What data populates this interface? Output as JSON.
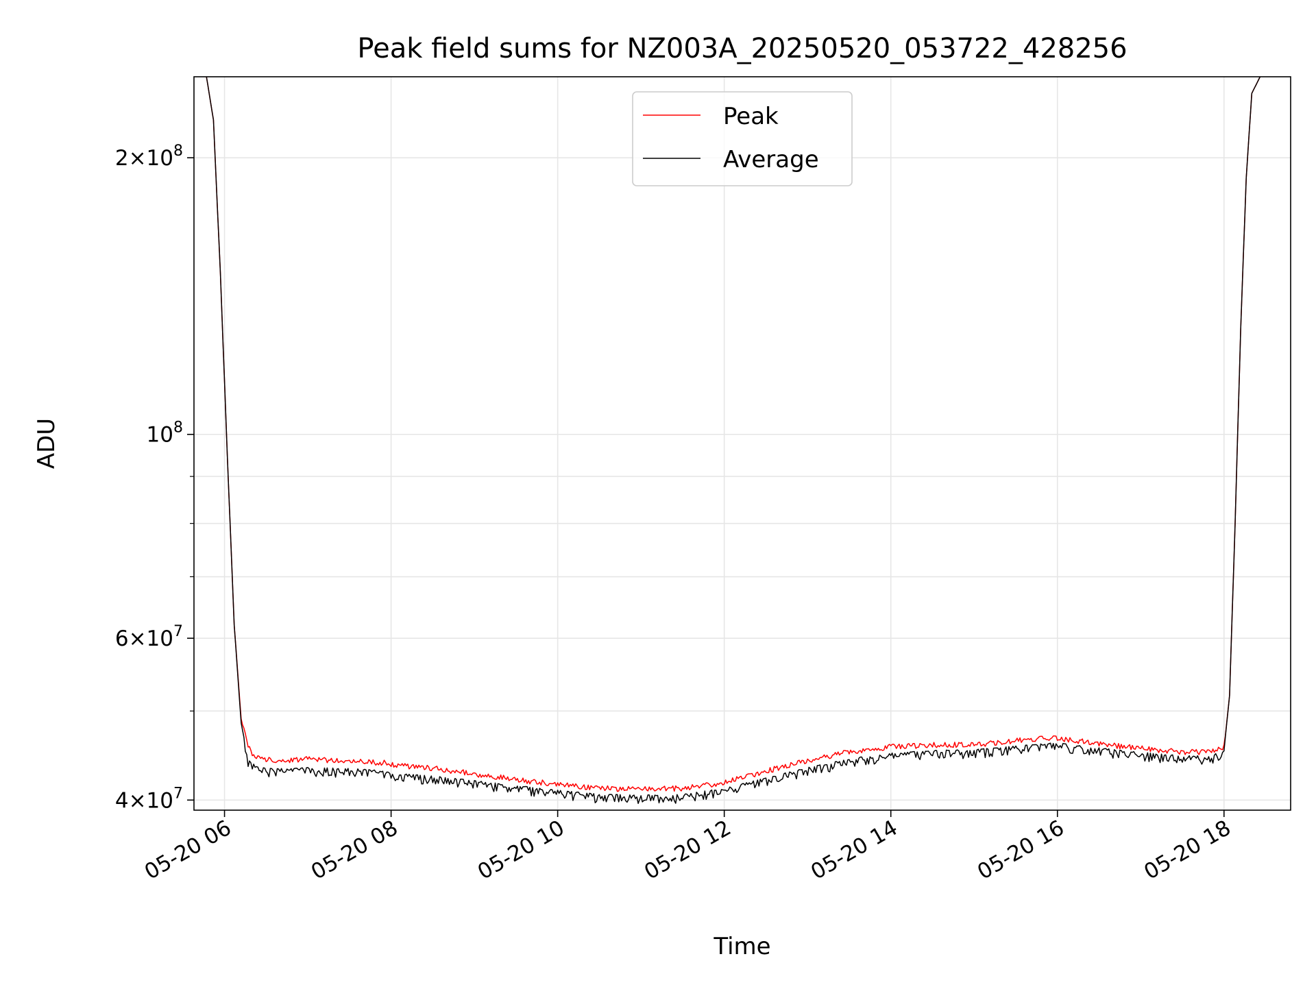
{
  "chart_data": {
    "type": "line",
    "title": "Peak field sums for NZ003A_20250520_053722_428256",
    "xlabel": "Time",
    "ylabel": "ADU",
    "yscale": "log",
    "ylim": [
      39000000,
      245000000
    ],
    "xlim": [
      "2025-05-20T05:38",
      "2025-05-20T18:48"
    ],
    "grid": true,
    "legend_position": "top-center",
    "x_tick_labels": [
      "05-20 06",
      "05-20 08",
      "05-20 10",
      "05-20 12",
      "05-20 14",
      "05-20 16",
      "05-20 18"
    ],
    "x_tick_values": [
      "2025-05-20T06:00",
      "2025-05-20T08:00",
      "2025-05-20T10:00",
      "2025-05-20T12:00",
      "2025-05-20T14:00",
      "2025-05-20T16:00",
      "2025-05-20T18:00"
    ],
    "y_ticks": [
      {
        "value": 200000000,
        "mantissa": "2",
        "exponent": "8"
      },
      {
        "value": 100000000,
        "mantissa": "",
        "exponent": "8"
      },
      {
        "value": 60000000,
        "mantissa": "6",
        "exponent": "7"
      },
      {
        "value": 40000000,
        "mantissa": "4",
        "exponent": "7"
      }
    ],
    "series": [
      {
        "name": "Peak",
        "color": "#ff0000",
        "x": [
          "2025-05-20T05:47",
          "2025-05-20T05:52",
          "2025-05-20T05:57",
          "2025-05-20T06:02",
          "2025-05-20T06:07",
          "2025-05-20T06:12",
          "2025-05-20T06:17",
          "2025-05-20T06:22",
          "2025-05-20T06:30",
          "2025-05-20T06:45",
          "2025-05-20T07:00",
          "2025-05-20T07:30",
          "2025-05-20T07:55",
          "2025-05-20T08:00",
          "2025-05-20T08:30",
          "2025-05-20T09:00",
          "2025-05-20T09:30",
          "2025-05-20T10:00",
          "2025-05-20T10:30",
          "2025-05-20T11:00",
          "2025-05-20T11:30",
          "2025-05-20T12:00",
          "2025-05-20T12:30",
          "2025-05-20T13:00",
          "2025-05-20T13:30",
          "2025-05-20T14:00",
          "2025-05-20T14:30",
          "2025-05-20T15:00",
          "2025-05-20T15:30",
          "2025-05-20T16:00",
          "2025-05-20T16:30",
          "2025-05-20T17:00",
          "2025-05-20T17:30",
          "2025-05-20T17:50",
          "2025-05-20T18:00",
          "2025-05-20T18:04",
          "2025-05-20T18:08",
          "2025-05-20T18:12",
          "2025-05-20T18:16",
          "2025-05-20T18:20",
          "2025-05-20T18:26"
        ],
        "values": [
          245000000,
          220000000,
          150000000,
          95000000,
          62000000,
          49000000,
          45500000,
          44300000,
          44000000,
          44000000,
          44100000,
          43900000,
          43700000,
          43500000,
          43100000,
          42500000,
          41900000,
          41400000,
          41000000,
          40900000,
          41000000,
          41600000,
          42800000,
          43900000,
          44900000,
          45500000,
          45700000,
          45700000,
          46200000,
          46500000,
          45800000,
          45300000,
          44900000,
          44900000,
          45500000,
          52000000,
          80000000,
          130000000,
          190000000,
          235000000,
          245000000
        ]
      },
      {
        "name": "Average",
        "color": "#000000",
        "x": [
          "2025-05-20T05:47",
          "2025-05-20T05:52",
          "2025-05-20T05:57",
          "2025-05-20T06:02",
          "2025-05-20T06:07",
          "2025-05-20T06:12",
          "2025-05-20T06:17",
          "2025-05-20T06:22",
          "2025-05-20T06:30",
          "2025-05-20T06:45",
          "2025-05-20T07:00",
          "2025-05-20T07:30",
          "2025-05-20T07:55",
          "2025-05-20T08:00",
          "2025-05-20T08:30",
          "2025-05-20T09:00",
          "2025-05-20T09:30",
          "2025-05-20T10:00",
          "2025-05-20T10:30",
          "2025-05-20T11:00",
          "2025-05-20T11:30",
          "2025-05-20T12:00",
          "2025-05-20T12:30",
          "2025-05-20T13:00",
          "2025-05-20T13:30",
          "2025-05-20T14:00",
          "2025-05-20T14:30",
          "2025-05-20T15:00",
          "2025-05-20T15:30",
          "2025-05-20T16:00",
          "2025-05-20T16:30",
          "2025-05-20T17:00",
          "2025-05-20T17:30",
          "2025-05-20T17:50",
          "2025-05-20T18:00",
          "2025-05-20T18:04",
          "2025-05-20T18:08",
          "2025-05-20T18:12",
          "2025-05-20T18:16",
          "2025-05-20T18:20",
          "2025-05-20T18:26"
        ],
        "values": [
          245000000,
          220000000,
          150000000,
          95000000,
          62000000,
          48500000,
          44500000,
          43600000,
          43300000,
          43300000,
          43400000,
          43300000,
          43100000,
          42800000,
          42500000,
          42000000,
          41500000,
          41000000,
          40600000,
          40500000,
          40600000,
          41200000,
          42300000,
          43400000,
          44400000,
          45000000,
          45300000,
          45400000,
          45800000,
          46200000,
          45600000,
          45100000,
          44700000,
          44700000,
          45300000,
          52000000,
          80000000,
          130000000,
          190000000,
          235000000,
          245000000
        ]
      }
    ]
  }
}
